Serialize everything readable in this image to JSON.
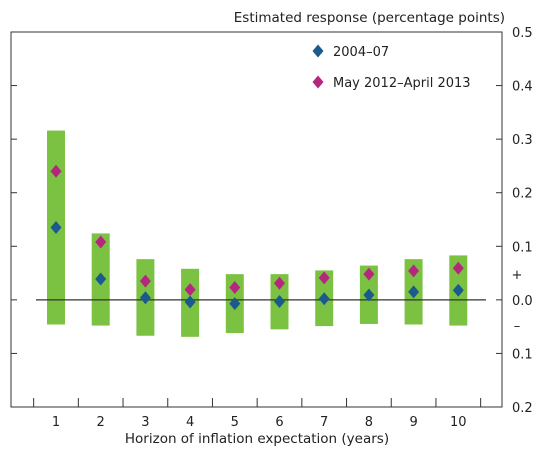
{
  "chart_data": {
    "type": "scatter",
    "title": "",
    "xlabel": "Horizon of inflation expectation (years)",
    "ylabel": "Estimated response (percentage points)",
    "x": [
      1,
      2,
      3,
      4,
      5,
      6,
      7,
      8,
      9,
      10
    ],
    "x_tick_labels": [
      "1",
      "2",
      "3",
      "4",
      "5",
      "6",
      "7",
      "8",
      "9",
      "10"
    ],
    "ylim": [
      -0.2,
      0.5
    ],
    "y_tick_values": [
      0.5,
      0.4,
      0.3,
      0.2,
      0.1,
      0.0,
      -0.1,
      -0.2
    ],
    "y_tick_labels": [
      "0.5",
      "0.4",
      "0.3",
      "0.2",
      "0.1",
      "0.0",
      "0.1",
      "0.2"
    ],
    "sign_markers": {
      "positive": "+",
      "negative": "–"
    },
    "y_axis_side": "right",
    "grid": false,
    "zero_line": true,
    "legend_position": "top-right",
    "ranges": {
      "color": "#7cc242",
      "low": [
        -0.046,
        -0.048,
        -0.067,
        -0.069,
        -0.062,
        -0.055,
        -0.049,
        -0.045,
        -0.046,
        -0.048
      ],
      "high": [
        0.316,
        0.124,
        0.076,
        0.058,
        0.048,
        0.048,
        0.055,
        0.064,
        0.076,
        0.083
      ]
    },
    "series": [
      {
        "name": "2004–07",
        "color": "#1b5a8c",
        "marker": "diamond",
        "values": [
          0.135,
          0.039,
          0.004,
          -0.004,
          -0.007,
          -0.003,
          0.002,
          0.009,
          0.015,
          0.018
        ]
      },
      {
        "name": "May 2012–April 2013",
        "color": "#b5267f",
        "marker": "diamond",
        "values": [
          0.24,
          0.108,
          0.035,
          0.019,
          0.023,
          0.031,
          0.041,
          0.048,
          0.054,
          0.059
        ]
      }
    ]
  }
}
